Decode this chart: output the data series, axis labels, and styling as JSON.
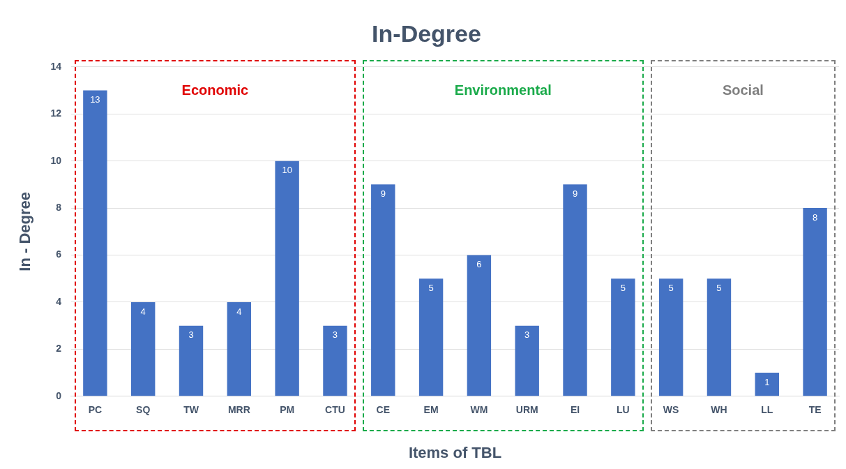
{
  "chart_data": {
    "type": "bar",
    "title": "In-Degree",
    "xlabel": "Items of TBL",
    "ylabel": "In - Degree",
    "categories": [
      "PC",
      "SQ",
      "TW",
      "MRR",
      "PM",
      "CTU",
      "CE",
      "EM",
      "WM",
      "URM",
      "EI",
      "LU",
      "WS",
      "WH",
      "LL",
      "TE"
    ],
    "values": [
      13,
      4,
      3,
      4,
      10,
      3,
      9,
      5,
      6,
      3,
      9,
      5,
      5,
      5,
      1,
      8
    ],
    "color": "#4472c4",
    "ylim": [
      0,
      14
    ],
    "yticks": [
      0,
      2,
      4,
      6,
      8,
      10,
      12,
      14
    ],
    "grid": "y",
    "data_labels": true,
    "legend": false,
    "annotations": [
      "Economic",
      "Environmental",
      "Social"
    ]
  }
}
